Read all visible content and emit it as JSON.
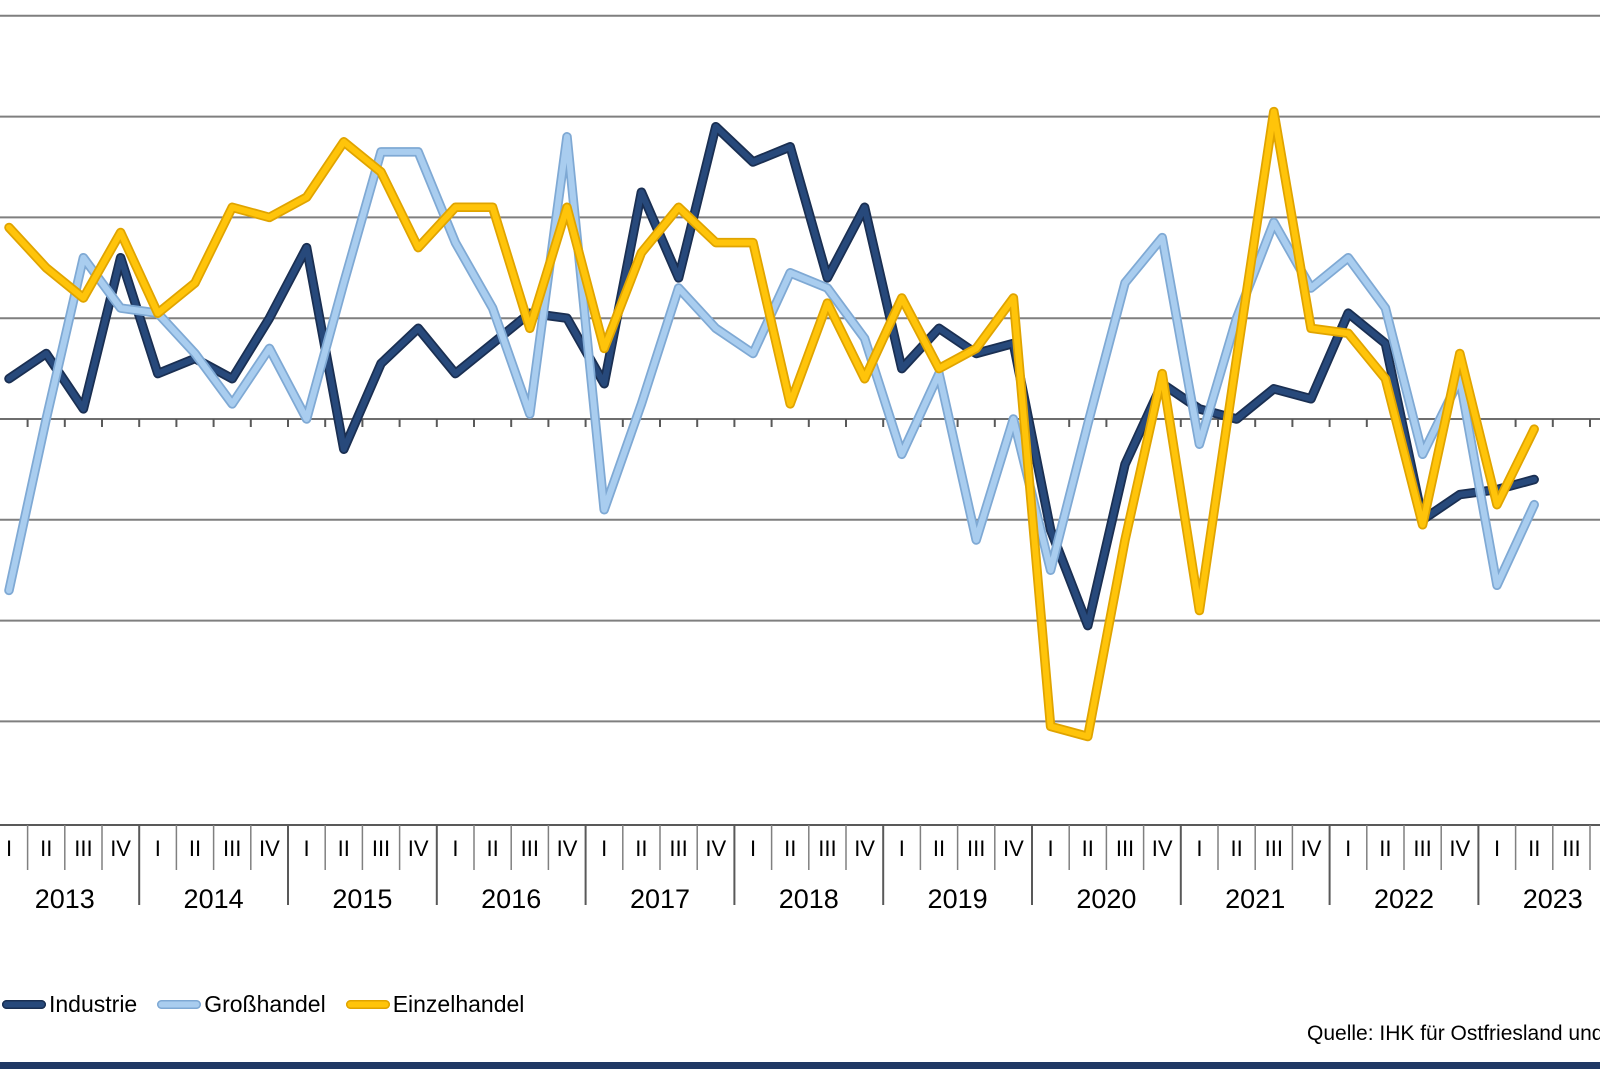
{
  "chart_data": {
    "type": "line",
    "title": "",
    "xlabel": "",
    "ylabel": "",
    "grid": true,
    "gridline_values": [
      80,
      60,
      40,
      20,
      0,
      -20,
      -40,
      -60
    ],
    "ylim": [
      -70,
      85
    ],
    "legend_position": "bottom-left",
    "quarter_labels": [
      "I",
      "II",
      "III",
      "IV"
    ],
    "years": [
      "2013",
      "2014",
      "2015",
      "2016",
      "2017",
      "2018",
      "2019",
      "2020",
      "2021",
      "2022",
      "2023"
    ],
    "series": [
      {
        "name": "Industrie",
        "color": "#27497b",
        "edge_color": "#1a2f52",
        "values": [
          8,
          13,
          2,
          32,
          9,
          12,
          8,
          20,
          34,
          -6,
          11,
          18,
          9,
          15,
          21,
          20,
          7,
          45,
          28,
          58,
          51,
          54,
          28,
          42,
          10,
          18,
          13,
          15,
          -22,
          -41,
          -9,
          7,
          2,
          0,
          6,
          4,
          21,
          15,
          -20,
          -15,
          -14,
          -12
        ]
      },
      {
        "name": "Großhandel",
        "color": "#a9cdef",
        "edge_color": "#7fa9d4",
        "values": [
          -34,
          0,
          32,
          22,
          21,
          13,
          3,
          14,
          0,
          27,
          53,
          53,
          35,
          22,
          1,
          56,
          -18,
          3,
          26,
          18,
          13,
          29,
          26,
          16,
          -7,
          9,
          -24,
          0,
          -30,
          -1,
          27,
          36,
          -5,
          20,
          39,
          26,
          32,
          22,
          -7,
          8,
          -33,
          -17
        ]
      },
      {
        "name": "Einzelhandel",
        "color": "#ffc40a",
        "edge_color": "#e0a400",
        "values": [
          38,
          30,
          24,
          37,
          21,
          27,
          42,
          40,
          44,
          55,
          49,
          34,
          42,
          42,
          18,
          42,
          14,
          33,
          42,
          35,
          35,
          3,
          23,
          8,
          24,
          10,
          14,
          24,
          -61,
          -63,
          -24,
          9,
          -38,
          12,
          61,
          18,
          17,
          8,
          -21,
          13,
          -17,
          -2
        ]
      }
    ]
  },
  "source": {
    "label": "Quelle: IHK für Ostfriesland und"
  },
  "colors": {
    "gridline": "#7f7f7f",
    "zero_axis": "#6e6e6e",
    "axis_band": "#595959",
    "footer_bar": "#1f3864"
  }
}
